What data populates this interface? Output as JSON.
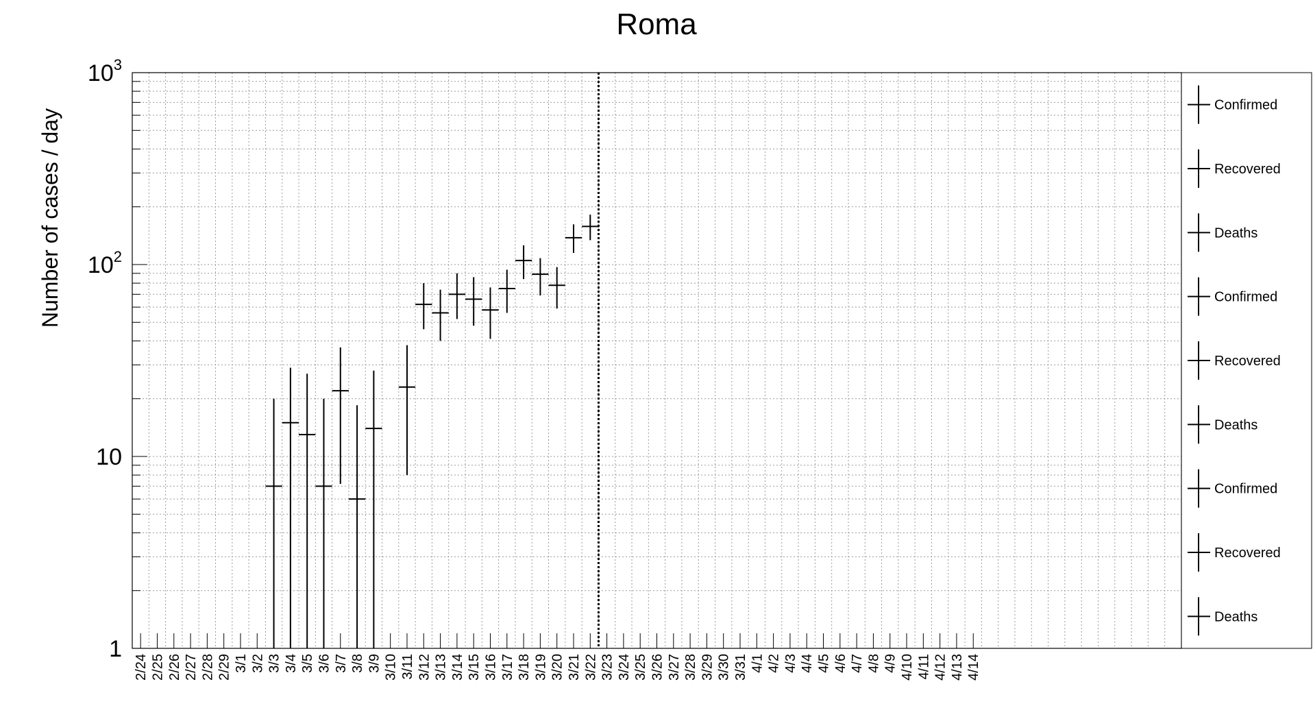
{
  "chart_data": {
    "type": "scatter",
    "title": "Roma",
    "xlabel": "",
    "ylabel": "Number of cases / day",
    "yscale": "log",
    "ylim": [
      1,
      1000
    ],
    "grid": true,
    "legend_placement": "right",
    "y_ticks": [
      {
        "value": 1,
        "base": "1",
        "exp": ""
      },
      {
        "value": 10,
        "base": "10",
        "exp": ""
      },
      {
        "value": 100,
        "base": "10",
        "exp": "2"
      },
      {
        "value": 1000,
        "base": "10",
        "exp": "3"
      }
    ],
    "categories": [
      "2/24",
      "2/25",
      "2/26",
      "2/27",
      "2/28",
      "2/29",
      "3/1",
      "3/2",
      "3/3",
      "3/4",
      "3/5",
      "3/6",
      "3/7",
      "3/8",
      "3/9",
      "3/10",
      "3/11",
      "3/12",
      "3/13",
      "3/14",
      "3/15",
      "3/16",
      "3/17",
      "3/18",
      "3/19",
      "3/20",
      "3/21",
      "3/22",
      "3/23",
      "3/24",
      "3/25",
      "3/26",
      "3/27",
      "3/28",
      "3/29",
      "3/30",
      "3/31",
      "4/1",
      "4/2",
      "4/3",
      "4/4",
      "4/5",
      "4/6",
      "4/7",
      "4/8",
      "4/9",
      "4/10",
      "4/11",
      "4/12",
      "4/13",
      "4/14"
    ],
    "reference_line": "3/22",
    "points": [
      {
        "x": "3/3",
        "y": 7,
        "ylo": 1,
        "yhi": 20
      },
      {
        "x": "3/4",
        "y": 15,
        "ylo": 1,
        "yhi": 29
      },
      {
        "x": "3/5",
        "y": 13,
        "ylo": 1,
        "yhi": 27
      },
      {
        "x": "3/6",
        "y": 7,
        "ylo": 1,
        "yhi": 20
      },
      {
        "x": "3/7",
        "y": 22,
        "ylo": 7.2,
        "yhi": 37
      },
      {
        "x": "3/8",
        "y": 6,
        "ylo": 1,
        "yhi": 18.5
      },
      {
        "x": "3/9",
        "y": 14,
        "ylo": 1,
        "yhi": 28
      },
      {
        "x": "3/11",
        "y": 23,
        "ylo": 8,
        "yhi": 38
      },
      {
        "x": "3/12",
        "y": 62,
        "ylo": 46,
        "yhi": 80
      },
      {
        "x": "3/13",
        "y": 56,
        "ylo": 40,
        "yhi": 74
      },
      {
        "x": "3/14",
        "y": 70,
        "ylo": 52,
        "yhi": 90
      },
      {
        "x": "3/15",
        "y": 66,
        "ylo": 48,
        "yhi": 86
      },
      {
        "x": "3/16",
        "y": 58,
        "ylo": 41,
        "yhi": 76
      },
      {
        "x": "3/17",
        "y": 75,
        "ylo": 56,
        "yhi": 94
      },
      {
        "x": "3/18",
        "y": 105,
        "ylo": 84,
        "yhi": 126
      },
      {
        "x": "3/19",
        "y": 89,
        "ylo": 69,
        "yhi": 108
      },
      {
        "x": "3/20",
        "y": 78,
        "ylo": 59,
        "yhi": 97
      },
      {
        "x": "3/21",
        "y": 138,
        "ylo": 115,
        "yhi": 162
      },
      {
        "x": "3/22",
        "y": 158,
        "ylo": 134,
        "yhi": 182
      }
    ],
    "legend": [
      "Confirmed",
      "Recovered",
      "Deaths",
      "Confirmed",
      "Recovered",
      "Deaths",
      "Confirmed",
      "Recovered",
      "Deaths"
    ]
  }
}
